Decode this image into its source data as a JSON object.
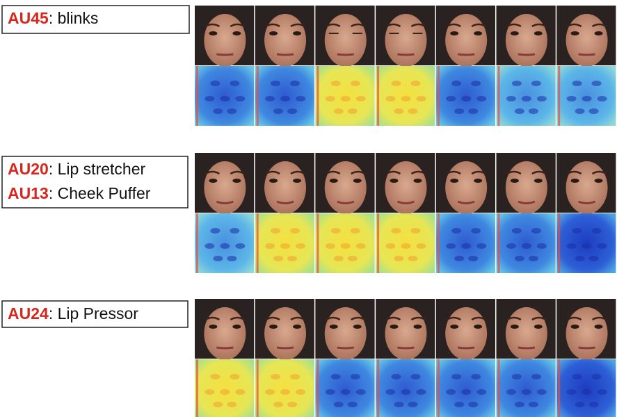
{
  "groups": [
    {
      "labels": [
        {
          "code": "AU45",
          "text": ": blinks"
        }
      ]
    },
    {
      "labels": [
        {
          "code": "AU20",
          "text": ": Lip stretcher"
        },
        {
          "code": "AU13",
          "text": ": Cheek Puffer"
        }
      ]
    },
    {
      "labels": [
        {
          "code": "AU24",
          "text": ": Lip Pressor"
        }
      ]
    }
  ]
}
